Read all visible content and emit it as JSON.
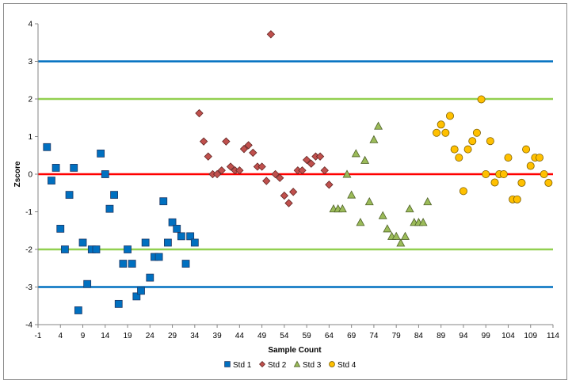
{
  "chart_data": {
    "type": "scatter",
    "title": "",
    "xlabel": "Sample Count",
    "ylabel": "Zscore",
    "xlim": [
      -1,
      114
    ],
    "ylim": [
      -4,
      4
    ],
    "x_ticks": [
      -1,
      4,
      9,
      14,
      19,
      24,
      29,
      34,
      39,
      44,
      49,
      54,
      59,
      64,
      69,
      74,
      79,
      84,
      89,
      94,
      99,
      104,
      109,
      114
    ],
    "y_ticks": [
      -4,
      -3,
      -2,
      -1,
      0,
      1,
      2,
      3,
      4
    ],
    "grid": false,
    "legend_position": "bottom",
    "reference_lines": [
      {
        "y": 3,
        "color": "#0070c0"
      },
      {
        "y": -3,
        "color": "#0070c0"
      },
      {
        "y": 2,
        "color": "#92d050"
      },
      {
        "y": -2,
        "color": "#92d050"
      },
      {
        "y": 0,
        "color": "#ff0000"
      }
    ],
    "series": [
      {
        "name": "Std 1",
        "marker": "square",
        "color": "#0070c0",
        "x": [
          1,
          2,
          3,
          4,
          5,
          6,
          7,
          8,
          9,
          10,
          11,
          12,
          13,
          14,
          15,
          16,
          17,
          18,
          19,
          20,
          21,
          22,
          23,
          24,
          25,
          26,
          27,
          28,
          29,
          30,
          31,
          32,
          33,
          34
        ],
        "y": [
          0.72,
          -0.17,
          0.17,
          -1.45,
          -2.0,
          -0.55,
          0.17,
          -3.62,
          -1.82,
          -2.92,
          -2.0,
          -2.0,
          0.55,
          0.0,
          -0.92,
          -0.55,
          -3.45,
          -2.38,
          -2.0,
          -2.38,
          -3.25,
          -3.1,
          -1.82,
          -2.75,
          -2.2,
          -2.2,
          -0.72,
          -1.82,
          -1.28,
          -1.45,
          -1.65,
          -2.38,
          -1.65,
          -1.82
        ]
      },
      {
        "name": "Std 2",
        "marker": "diamond",
        "color": "#c0504d",
        "x": [
          35,
          36,
          37,
          38,
          39,
          40,
          41,
          42,
          43,
          44,
          45,
          46,
          47,
          48,
          49,
          50,
          51,
          52,
          53,
          54,
          55,
          56,
          57,
          58,
          59,
          60,
          61,
          62,
          63,
          64
        ],
        "y": [
          1.62,
          0.87,
          0.47,
          0.0,
          0.0,
          0.1,
          0.87,
          0.2,
          0.1,
          0.1,
          0.67,
          0.77,
          0.57,
          0.2,
          0.2,
          -0.18,
          3.72,
          0.0,
          -0.1,
          -0.57,
          -0.77,
          -0.47,
          0.1,
          0.1,
          0.38,
          0.28,
          0.47,
          0.47,
          0.1,
          -0.28
        ]
      },
      {
        "name": "Std 3",
        "marker": "triangle",
        "color": "#9bbb59",
        "x": [
          65,
          66,
          67,
          68,
          69,
          70,
          71,
          72,
          73,
          74,
          75,
          76,
          77,
          78,
          79,
          80,
          81,
          82,
          83,
          84,
          85,
          86
        ],
        "y": [
          -0.92,
          -0.92,
          -0.92,
          0.0,
          -0.55,
          0.55,
          -1.28,
          0.37,
          -0.73,
          0.92,
          1.28,
          -1.1,
          -1.45,
          -1.65,
          -1.65,
          -1.83,
          -1.65,
          -0.92,
          -1.28,
          -1.28,
          -1.28,
          -0.73
        ]
      },
      {
        "name": "Std 4",
        "marker": "circle",
        "color": "#ffc000",
        "x": [
          88,
          89,
          90,
          91,
          92,
          93,
          94,
          95,
          96,
          97,
          98,
          99,
          100,
          101,
          102,
          103,
          104,
          105,
          106,
          107,
          108,
          109,
          110,
          111,
          112,
          113
        ],
        "y": [
          1.1,
          1.32,
          1.1,
          1.55,
          0.66,
          0.44,
          -0.45,
          0.66,
          0.88,
          1.1,
          1.99,
          0.0,
          0.88,
          -0.22,
          0.0,
          0.0,
          0.44,
          -0.67,
          -0.67,
          -0.23,
          0.66,
          0.22,
          0.44,
          0.44,
          0.0,
          -0.23
        ]
      }
    ]
  }
}
